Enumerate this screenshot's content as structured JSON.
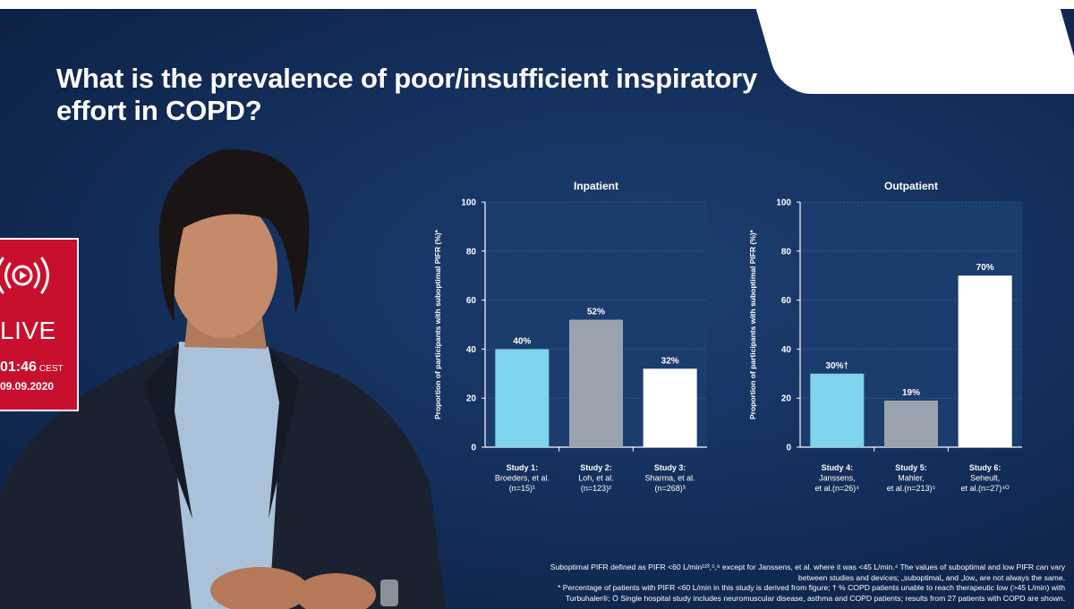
{
  "slide": {
    "title": "What is the prevalence of poor/insufficient inspiratory effort in COPD?"
  },
  "live_badge": {
    "label": "LIVE",
    "time": "01:46",
    "timezone": "CEST",
    "date": "09.09.2020",
    "icon": "live-broadcast-icon",
    "color": "#c8102e"
  },
  "colors": {
    "background": "#14305c",
    "plot_area": "#1b3d6d",
    "bar_light_blue": "#7fd3ec",
    "bar_grey": "#9aa3ad",
    "bar_white": "#ffffff"
  },
  "chart_data": [
    {
      "type": "bar",
      "title": "Inpatient",
      "ylabel": "Proportion of participants with suboptimal PIFR (%)*",
      "ylim": [
        0,
        100
      ],
      "yticks": [
        0,
        20,
        40,
        60,
        80,
        100
      ],
      "categories": [
        [
          "Study 1:",
          "Broeders, et al.",
          "(n=15)¹"
        ],
        [
          "Study 2:",
          "Loh, et al.",
          "(n=123)²"
        ],
        [
          "Study 3:",
          "Sharma, et al.",
          "(n=268)³"
        ]
      ],
      "values": [
        40,
        52,
        32
      ],
      "value_labels": [
        "40%",
        "52%",
        "32%"
      ],
      "bar_colors": [
        "#7fd3ec",
        "#9aa3ad",
        "#ffffff"
      ]
    },
    {
      "type": "bar",
      "title": "Outpatient",
      "ylabel": "Proportion of participants with suboptimal PIFR (%)*",
      "ylim": [
        0,
        100
      ],
      "yticks": [
        0,
        20,
        40,
        60,
        80,
        100
      ],
      "categories": [
        [
          "Study 4:",
          "Janssens,",
          "et al.(n=26)⁴"
        ],
        [
          "Study 5:",
          "Mahler,",
          "et al.(n=213)⁵"
        ],
        [
          "Study 6:",
          "Seheult,",
          "et al.(n=27)⁴ᴼ"
        ]
      ],
      "values": [
        30,
        19,
        70
      ],
      "value_labels": [
        "30%†",
        "19%",
        "70%"
      ],
      "bar_colors": [
        "#7fd3ec",
        "#9aa3ad",
        "#ffffff"
      ]
    }
  ],
  "footnotes": {
    "line1": "Suboptimal PIFR deﬁned as PIFR <60 L/min¹²³,⁵,⁶ except for Janssens, et al. where it was <45 L/min.⁴ The values of suboptimal and low PIFR can vary",
    "line2": "between studies and devices; „suboptimal„ and „low„ are not always the same.",
    "line3": "* Percentage of patients with PIFR <60 L/min in this study is derived from ﬁgure; † % COPD patients unable to reach therapeutic low (>45 L/min) with",
    "line4": "Turbuhaler®; Ö Single hospital study includes neuromuscular disease, asthma and COPD patients; results from 27 patients with COPD are shown."
  }
}
